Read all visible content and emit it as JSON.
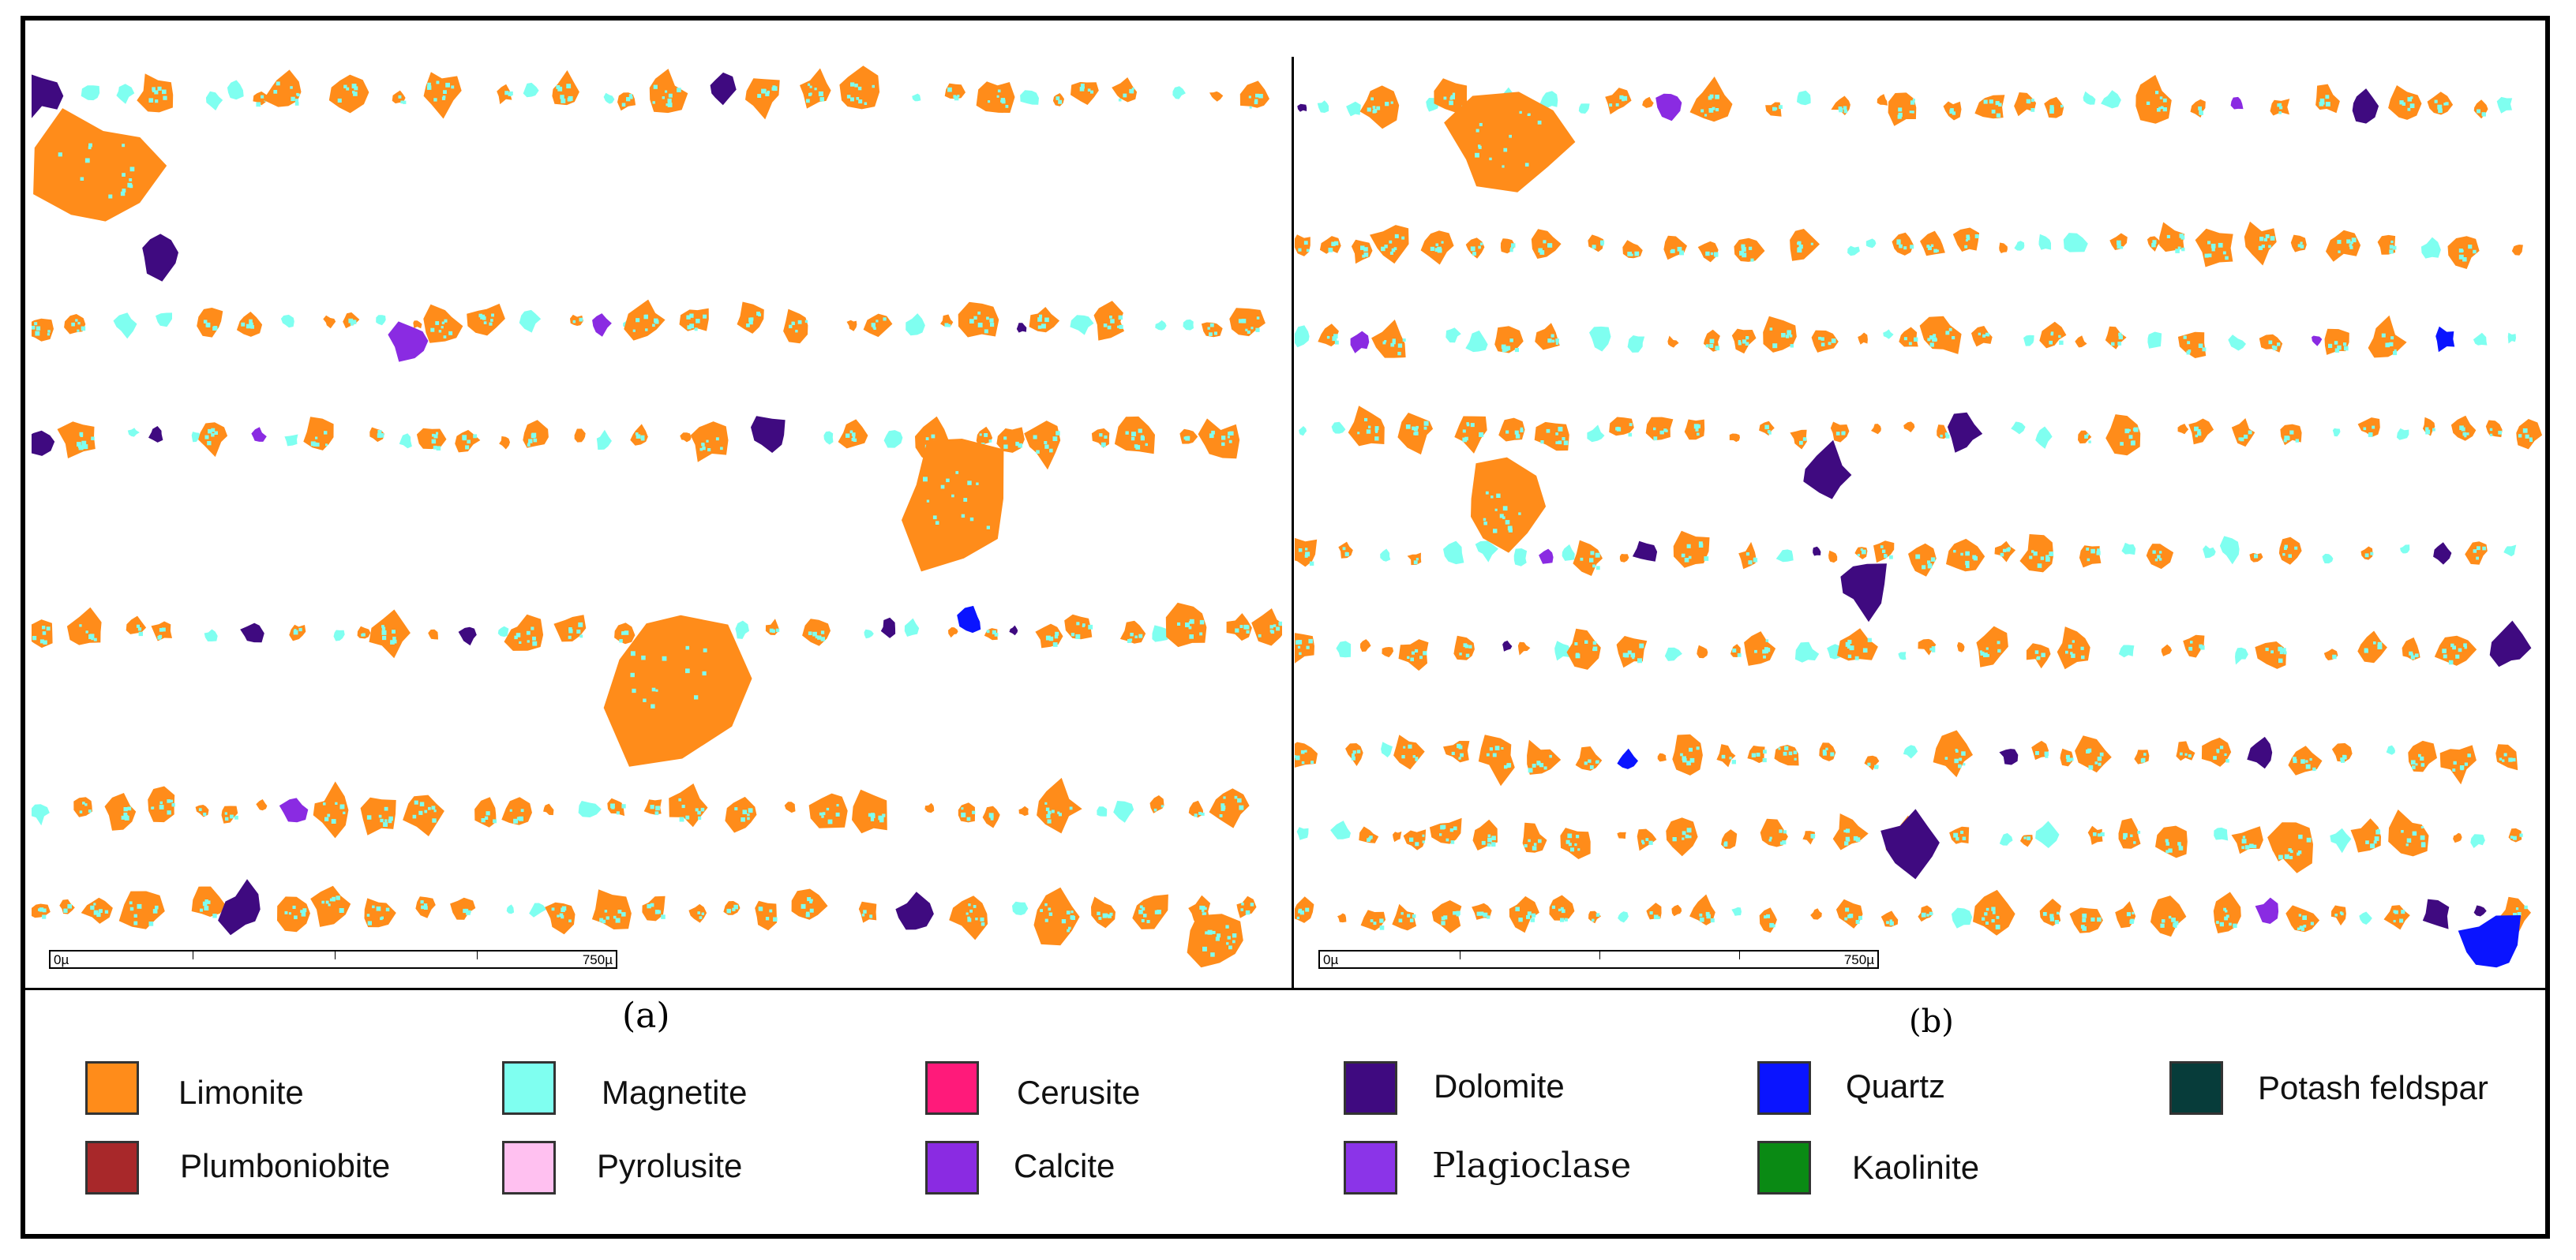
{
  "panels": [
    {
      "id": "a",
      "caption": "(a)",
      "scale_start": "0µ",
      "scale_end": "750µ"
    },
    {
      "id": "b",
      "caption": "(b)",
      "scale_start": "0µ",
      "scale_end": "750µ"
    }
  ],
  "legend": [
    {
      "label": "Limonite",
      "color": "#FF8C1A"
    },
    {
      "label": "Magnetite",
      "color": "#7FFFF0"
    },
    {
      "label": "Cerusite",
      "color": "#FF1A7A"
    },
    {
      "label": "Dolomite",
      "color": "#3F0A80"
    },
    {
      "label": "Quartz",
      "color": "#0A14FF"
    },
    {
      "label": "Potash feldspar",
      "color": "#073C3A"
    },
    {
      "label": "Plumboniobite",
      "color": "#A8282A"
    },
    {
      "label": "Pyrolusite",
      "color": "#FFC0F0"
    },
    {
      "label": "Calcite",
      "color": "#8A2BE2"
    },
    {
      "label": "Plagioclase",
      "color": "#8B34E8"
    },
    {
      "label": "Kaolinite",
      "color": "#0A8A14"
    }
  ]
}
